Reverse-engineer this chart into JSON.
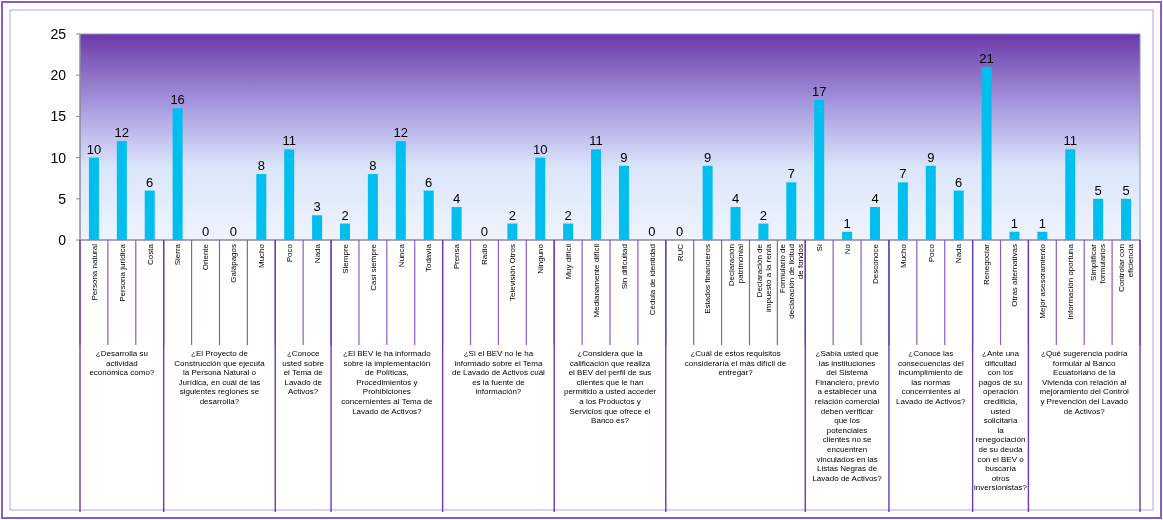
{
  "chart_data": {
    "type": "bar",
    "categories": [
      "Persona natural",
      "Persona jurídica",
      "Costa",
      "Sierra",
      "Oriente",
      "Galápagos",
      "Mucho",
      "Poco",
      "Nada",
      "Siempre",
      "Casi siempre",
      "Nunca",
      "Todavía",
      "Prensa",
      "Radio",
      "Televisión Otros",
      "Ninguno",
      "Muy difícil",
      "Medianamente difícil",
      "Sin dificultad",
      "Cédula de identidad",
      "RUC",
      "Estados financieros",
      "Declaración patrimonial",
      "Declaración de impuesto a la renta",
      "Formulario de declaración de licitud de fondos",
      "Sí",
      "No",
      "Desconoce",
      "Mucho",
      "Poco",
      "Nada",
      "Renegociar",
      "Otras alternativas",
      "Mejor asesoramiento",
      "Información oportuna",
      "Simplificar formularios",
      "Controlar con eficiencia"
    ],
    "values": [
      10,
      12,
      6,
      16,
      0,
      0,
      8,
      11,
      3,
      2,
      8,
      12,
      6,
      4,
      0,
      2,
      10,
      2,
      11,
      9,
      0,
      0,
      9,
      4,
      2,
      7,
      17,
      1,
      4,
      7,
      9,
      6,
      21,
      1,
      1,
      11,
      5,
      5
    ],
    "color": "#00bfef",
    "ylim": [
      0,
      25
    ],
    "yticks": [
      0,
      5,
      10,
      15,
      20,
      25
    ],
    "data_labels": true,
    "annotations": [
      "¿Desarrolla su actividad económica como?",
      "¿El Proyecto de Construcción que ejecuta la Persona Natural o Jurídica, en cuál de las siguientes regiones se desarrolla?",
      "¿Conoce usted sobre el Tema de Lavado de Activos?",
      "¿El BEV le ha informado sobre la implementación de Políticas, Procedimientos y Prohibiciones concernientes al Tema de Lavado de Activos?",
      "¿Si el BEV no le ha informado sobre el Tema de Lavado de Activos cuál es la fuente de información?",
      "¿Considera que la calificación que realiza el BEV del perfil de sus clientes que le han permitido a usted acceder a los Productos y Servicios que ofrece el Banco es?",
      "¿Cuál de estos requisitos consideraría el más difícil de entregar?",
      "¿Sabía usted que las instituciones del Sistema Financiero, previo a establecer una relación comercial deben verificar que los potenciales clientes no se encuentren vinculados en las Listas Negras de Lavado de Activos?",
      "¿Conoce las consecuencias del incumplimiento de las normas concernientes al Lavado de Activos?",
      "¿Ante una dificultad con los pagos de su operación crediticia, usted solicitaría la renegociación de su deuda con el BEV o buscaría otros inversionistas?",
      "¿Qué sugerencia podría formular al Banco Ecuatoriano de la Vivienda con relación al mejoramiento del Control y Prevención del Lavado de Activos?"
    ]
  }
}
